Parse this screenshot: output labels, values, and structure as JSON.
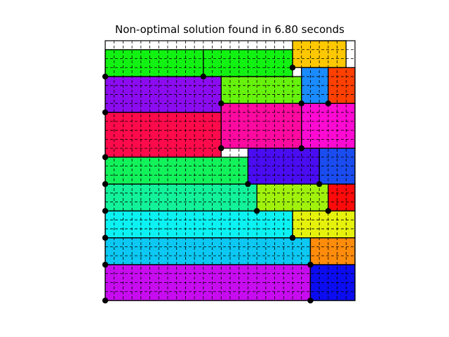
{
  "title": "Non-optimal solution found in 6.80 seconds",
  "grid": {
    "cols": 28,
    "rows": 29
  },
  "rectangles": [
    {
      "name": "rect-green-top-left",
      "col": 0,
      "row": 1,
      "w": 11,
      "h": 3,
      "color": "#12f212"
    },
    {
      "name": "rect-green-top-mid",
      "col": 11,
      "row": 1,
      "w": 10,
      "h": 3,
      "color": "#12f212"
    },
    {
      "name": "rect-orange-top",
      "col": 21,
      "row": 0,
      "w": 6,
      "h": 3,
      "color": "#ffc800"
    },
    {
      "name": "rect-purple-1",
      "col": 0,
      "row": 4,
      "w": 13,
      "h": 4,
      "color": "#8c0cf0"
    },
    {
      "name": "rect-lime-1",
      "col": 13,
      "row": 4,
      "w": 9,
      "h": 3,
      "color": "#66f20c"
    },
    {
      "name": "rect-blue-1",
      "col": 22,
      "row": 3,
      "w": 3,
      "h": 4,
      "color": "#1a8cff"
    },
    {
      "name": "rect-red-orange-1",
      "col": 25,
      "row": 3,
      "w": 3,
      "h": 4,
      "color": "#ff4000"
    },
    {
      "name": "rect-crimson-1",
      "col": 0,
      "row": 8,
      "w": 13,
      "h": 5,
      "color": "#ff0a4a"
    },
    {
      "name": "rect-pink-1",
      "col": 13,
      "row": 7,
      "w": 9,
      "h": 5,
      "color": "#ff0aa0"
    },
    {
      "name": "rect-magenta-1",
      "col": 22,
      "row": 7,
      "w": 6,
      "h": 5,
      "color": "#ff0ad2"
    },
    {
      "name": "rect-spring-green-1",
      "col": 0,
      "row": 13,
      "w": 16,
      "h": 3,
      "color": "#12f25a"
    },
    {
      "name": "rect-indigo-1",
      "col": 16,
      "row": 12,
      "w": 8,
      "h": 4,
      "color": "#4a0cf0"
    },
    {
      "name": "rect-royal-blue-1",
      "col": 24,
      "row": 12,
      "w": 4,
      "h": 4,
      "color": "#1a4cf0"
    },
    {
      "name": "rect-sea-green-1",
      "col": 0,
      "row": 16,
      "w": 17,
      "h": 3,
      "color": "#12f29a"
    },
    {
      "name": "rect-yellow-green-1",
      "col": 17,
      "row": 16,
      "w": 8,
      "h": 3,
      "color": "#a0f20c"
    },
    {
      "name": "rect-red-1",
      "col": 25,
      "row": 16,
      "w": 3,
      "h": 3,
      "color": "#ff0a0a"
    },
    {
      "name": "rect-cyan-1",
      "col": 0,
      "row": 19,
      "w": 21,
      "h": 3,
      "color": "#0cf2f2"
    },
    {
      "name": "rect-yellow-1",
      "col": 21,
      "row": 19,
      "w": 7,
      "h": 3,
      "color": "#e6f20c"
    },
    {
      "name": "rect-sky-blue-1",
      "col": 0,
      "row": 22,
      "w": 23,
      "h": 3,
      "color": "#0cc8f2"
    },
    {
      "name": "rect-orange-2",
      "col": 23,
      "row": 22,
      "w": 5,
      "h": 3,
      "color": "#ff8c0a"
    },
    {
      "name": "rect-violet-1",
      "col": 0,
      "row": 25,
      "w": 23,
      "h": 4,
      "color": "#c80cf0"
    },
    {
      "name": "rect-blue-2",
      "col": 23,
      "row": 25,
      "w": 5,
      "h": 4,
      "color": "#0c0cf0"
    }
  ]
}
